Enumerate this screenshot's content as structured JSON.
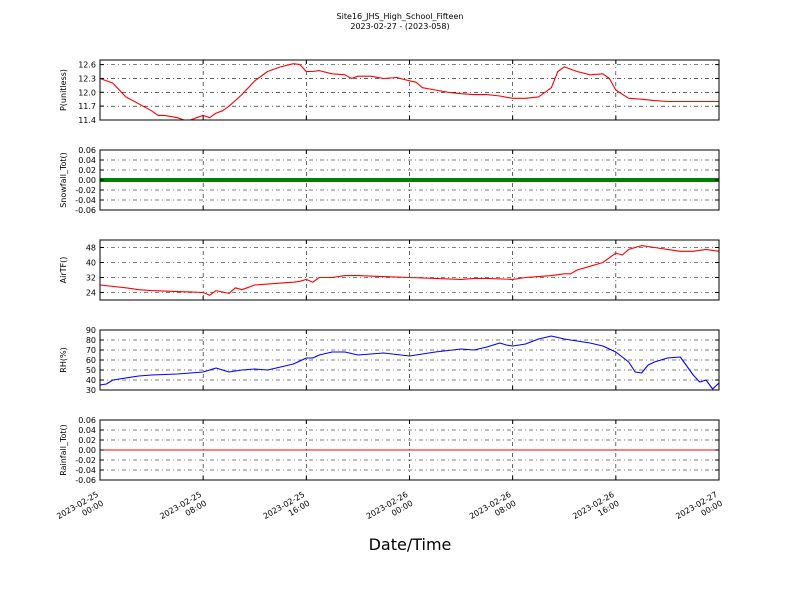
{
  "figure": {
    "title": "Site16_JHS_High_School_Fifteen",
    "subtitle": "2023-02-27 - (2023-058)",
    "xlabel": "Date/Time"
  },
  "x_ticks": [
    {
      "line1": "2023-02-25",
      "line2": "00:00",
      "hour": 0
    },
    {
      "line1": "2023-02-25",
      "line2": "08:00",
      "hour": 8
    },
    {
      "line1": "2023-02-25",
      "line2": "16:00",
      "hour": 16
    },
    {
      "line1": "2023-02-26",
      "line2": "00:00",
      "hour": 24
    },
    {
      "line1": "2023-02-26",
      "line2": "08:00",
      "hour": 32
    },
    {
      "line1": "2023-02-26",
      "line2": "16:00",
      "hour": 40
    },
    {
      "line1": "2023-02-27",
      "line2": "00:00",
      "hour": 48
    }
  ],
  "chart_data": [
    {
      "type": "line",
      "ylabel": "P(unitless)",
      "color": "#ff0000",
      "ylim": [
        11.4,
        12.7
      ],
      "yticks": [
        11.4,
        11.7,
        12.0,
        12.3,
        12.6
      ],
      "ytick_labels": [
        "11.4",
        "11.7",
        "12.0",
        "12.3",
        "12.6"
      ],
      "series": [
        {
          "x": [
            0,
            1,
            1.5,
            2,
            3,
            4,
            4.5,
            5,
            6,
            6.5,
            7,
            7.5,
            8,
            8.5,
            9,
            9.5,
            10,
            11,
            12,
            13,
            14,
            15,
            15.5,
            16,
            16.5,
            17,
            18,
            19,
            19.5,
            20,
            21,
            22,
            23,
            24,
            24.5,
            25,
            26,
            27,
            28,
            29,
            30,
            31,
            32,
            33,
            34,
            35,
            35.5,
            36,
            37,
            38,
            39,
            39.5,
            40,
            41,
            42,
            43,
            44,
            45,
            46,
            47,
            48
          ],
          "y": [
            12.3,
            12.2,
            12.05,
            11.9,
            11.75,
            11.6,
            11.5,
            11.5,
            11.45,
            11.4,
            11.4,
            11.45,
            11.5,
            11.45,
            11.55,
            11.6,
            11.7,
            11.95,
            12.25,
            12.45,
            12.55,
            12.62,
            12.6,
            12.45,
            12.45,
            12.47,
            12.4,
            12.38,
            12.3,
            12.35,
            12.35,
            12.3,
            12.32,
            12.25,
            12.22,
            12.1,
            12.05,
            12.0,
            11.97,
            11.95,
            11.95,
            11.92,
            11.87,
            11.87,
            11.9,
            12.1,
            12.45,
            12.55,
            12.45,
            12.38,
            12.4,
            12.3,
            12.05,
            11.87,
            11.85,
            11.82,
            11.8,
            11.8,
            11.8,
            11.8,
            11.8
          ]
        }
      ]
    },
    {
      "type": "line",
      "ylabel": "Snowfall_Tot()",
      "color": "#008000",
      "ylim": [
        -0.06,
        0.06
      ],
      "yticks": [
        -0.06,
        -0.04,
        -0.02,
        0.0,
        0.02,
        0.04,
        0.06
      ],
      "ytick_labels": [
        "-0.06",
        "-0.04",
        "-0.02",
        "0.00",
        "0.02",
        "0.04",
        "0.06"
      ],
      "series": [
        {
          "x": [
            0,
            48
          ],
          "y": [
            0,
            0
          ]
        }
      ]
    },
    {
      "type": "line",
      "ylabel": "AirTF()",
      "color": "#ff0000",
      "ylim": [
        20,
        52
      ],
      "yticks": [
        24,
        32,
        40,
        48
      ],
      "ytick_labels": [
        "24",
        "32",
        "40",
        "48"
      ],
      "series": [
        {
          "x": [
            0,
            2,
            3,
            4,
            6,
            7,
            8,
            8.5,
            9,
            10,
            10.5,
            11,
            12,
            13,
            14,
            15,
            15.5,
            16,
            16.5,
            17,
            18,
            19,
            20,
            22,
            24,
            26,
            28,
            29,
            30,
            32,
            33,
            34,
            35,
            36,
            36.5,
            37,
            38,
            39,
            40,
            40.5,
            41,
            42,
            43,
            44,
            45,
            46,
            47,
            48
          ],
          "y": [
            28,
            26.5,
            25.5,
            25,
            24.5,
            24.3,
            24,
            22.5,
            25,
            23.5,
            26.5,
            25.5,
            28,
            28.5,
            29,
            29.5,
            30,
            31,
            29.5,
            32,
            32,
            33,
            33,
            32.5,
            32,
            31.5,
            31,
            31.5,
            31.5,
            31,
            32,
            32.5,
            33,
            34,
            34,
            36,
            38,
            40,
            45,
            44,
            47,
            49,
            48,
            47,
            46,
            46,
            47,
            46
          ]
        }
      ]
    },
    {
      "type": "line",
      "ylabel": "RH(%)",
      "color": "#0000ff",
      "ylim": [
        30,
        90
      ],
      "yticks": [
        30,
        40,
        50,
        60,
        70,
        80,
        90
      ],
      "ytick_labels": [
        "30",
        "40",
        "50",
        "60",
        "70",
        "80",
        "90"
      ],
      "series": [
        {
          "x": [
            0,
            0.5,
            1,
            2,
            3,
            4,
            6,
            8,
            9,
            10,
            11,
            12,
            13,
            14,
            15,
            16,
            16.5,
            17,
            18,
            19,
            20,
            22,
            24,
            25,
            26,
            28,
            29,
            30,
            31,
            31.5,
            32,
            33,
            34,
            35,
            36,
            37,
            38,
            39,
            40,
            41,
            41.5,
            42,
            42.5,
            43,
            43.5,
            44,
            45,
            46,
            46.5,
            47,
            47.5,
            48
          ],
          "y": [
            35,
            36,
            40,
            42,
            44,
            45,
            46,
            48,
            52,
            48,
            50,
            51,
            50,
            53,
            56,
            62,
            62,
            65,
            68,
            68,
            65,
            67,
            64,
            66,
            68,
            71,
            70,
            73,
            77,
            75,
            74,
            76,
            81,
            84,
            81,
            79,
            77,
            74,
            68,
            58,
            48,
            47,
            55,
            58,
            60,
            62,
            63,
            45,
            38,
            40,
            31,
            37
          ]
        }
      ]
    },
    {
      "type": "line",
      "ylabel": "Rainfall_Tot()",
      "color": "#ff0000",
      "ylim": [
        -0.06,
        0.06
      ],
      "yticks": [
        -0.06,
        -0.04,
        -0.02,
        0.0,
        0.02,
        0.04,
        0.06
      ],
      "ytick_labels": [
        "-0.06",
        "-0.04",
        "-0.02",
        "0.00",
        "0.02",
        "0.04",
        "0.06"
      ],
      "series": [
        {
          "x": [
            0,
            48
          ],
          "y": [
            0,
            0
          ]
        }
      ]
    }
  ]
}
